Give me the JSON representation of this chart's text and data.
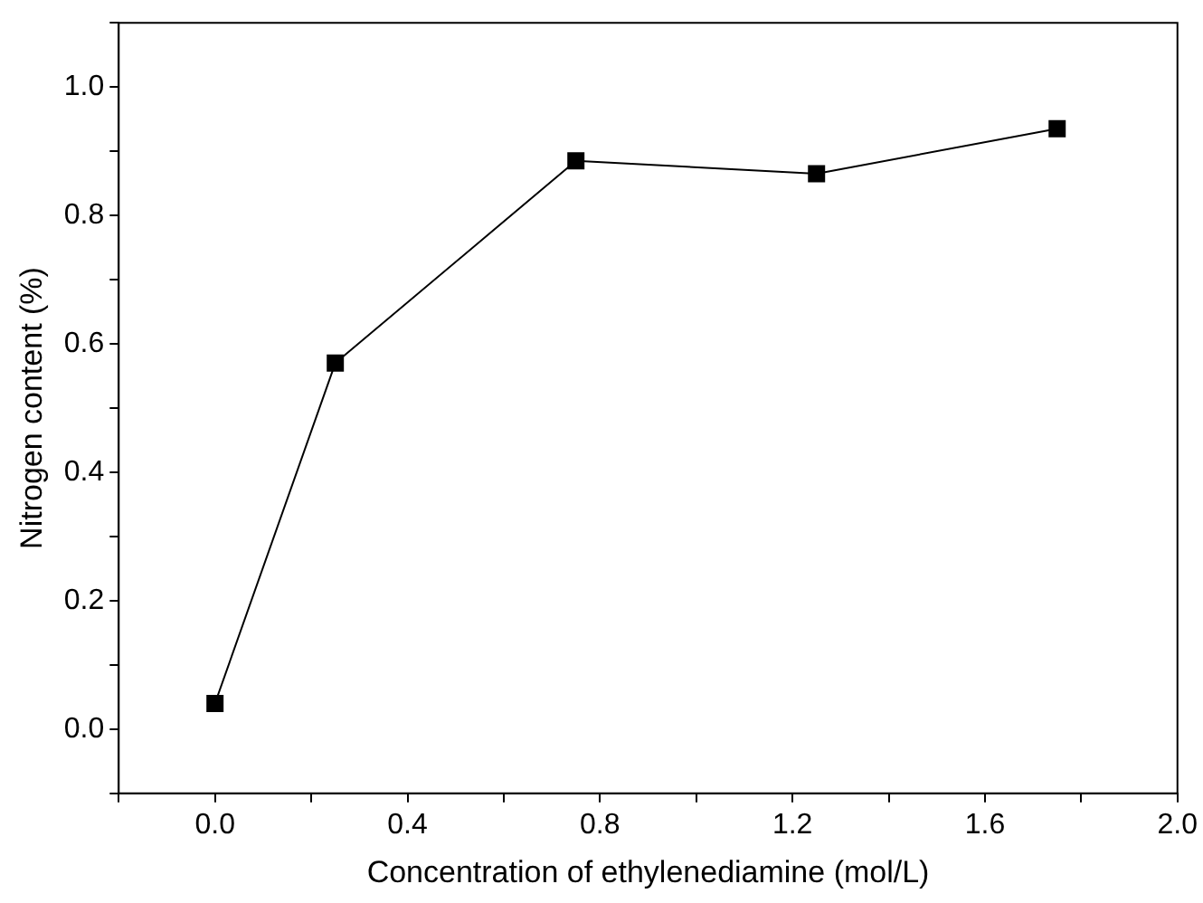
{
  "chart_data": {
    "type": "line",
    "xlabel": "Concentration of ethylenediamine (mol/L)",
    "ylabel": "Nitrogen content (%)",
    "x": [
      0,
      0.25,
      0.75,
      1.25,
      1.75
    ],
    "series": [
      {
        "color": "#000000",
        "values": [
          0.04,
          0.57,
          0.885,
          0.865,
          0.935
        ]
      }
    ],
    "xlim": [
      -0.2,
      2.0
    ],
    "xticks": [
      {
        "value": -0.2,
        "label": null
      },
      {
        "value": 0,
        "label": "0.0"
      },
      {
        "value": 0.2,
        "label": null
      },
      {
        "value": 0.4,
        "label": "0.4"
      },
      {
        "value": 0.6,
        "label": null
      },
      {
        "value": 0.8,
        "label": "0.8"
      },
      {
        "value": 1.0,
        "label": null
      },
      {
        "value": 1.2,
        "label": "1.2"
      },
      {
        "value": 1.4,
        "label": null
      },
      {
        "value": 1.6,
        "label": "1.6"
      },
      {
        "value": 1.8,
        "label": null
      },
      {
        "value": 2.0,
        "label": "2.0"
      }
    ],
    "ylim": [
      -0.1,
      1.1
    ],
    "yticks": [
      {
        "value": -0.1,
        "label": null
      },
      {
        "value": 0,
        "label": "0.0"
      },
      {
        "value": 0.1,
        "label": null
      },
      {
        "value": 0.2,
        "label": "0.2"
      },
      {
        "value": 0.3,
        "label": null
      },
      {
        "value": 0.4,
        "label": "0.4"
      },
      {
        "value": 0.5,
        "label": null
      },
      {
        "value": 0.6,
        "label": "0.6"
      },
      {
        "value": 0.7,
        "label": null
      },
      {
        "value": 0.8,
        "label": "0.8"
      },
      {
        "value": 0.9,
        "label": null
      },
      {
        "value": 1.0,
        "label": "1.0"
      },
      {
        "value": 1.1,
        "label": null
      }
    ],
    "grid": false,
    "legend": false,
    "marker": "square",
    "line_style": "solid"
  }
}
